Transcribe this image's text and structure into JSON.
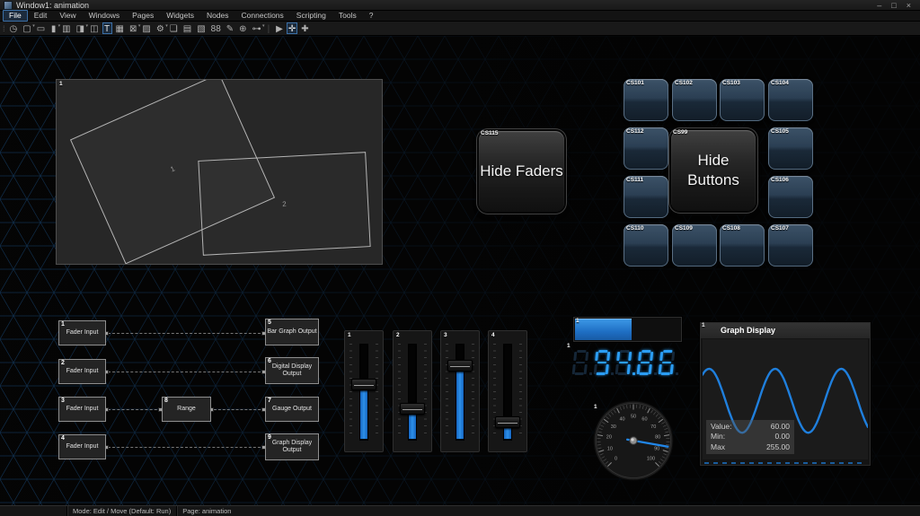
{
  "titlebar": {
    "title": "Window1: animation",
    "controls": {
      "minimize": "–",
      "maximize": "□",
      "close": "×"
    }
  },
  "menubar": {
    "items": [
      "File",
      "Edit",
      "View",
      "Windows",
      "Pages",
      "Widgets",
      "Nodes",
      "Connections",
      "Scripting",
      "Tools",
      "?"
    ],
    "active": "File"
  },
  "toolbar": {
    "buttons": [
      {
        "name": "clock-tool",
        "glyph": "◷"
      },
      {
        "name": "button-widget",
        "glyph": "▢",
        "dropdown": true
      },
      {
        "name": "label-widget",
        "glyph": "▭"
      },
      {
        "name": "fader-widget",
        "glyph": "▮",
        "dropdown": true
      },
      {
        "name": "fader-bank-widget",
        "glyph": "▥"
      },
      {
        "name": "display-widget",
        "glyph": "◨",
        "dropdown": true
      },
      {
        "name": "panel-widget",
        "glyph": "◫"
      },
      {
        "name": "text-widget",
        "glyph": "T",
        "active": true
      },
      {
        "name": "grid-widget",
        "glyph": "▦"
      },
      {
        "name": "picker-tool",
        "glyph": "⊠",
        "dropdown": true
      },
      {
        "name": "image-widget",
        "glyph": "▨"
      },
      {
        "name": "gear-tool",
        "glyph": "⚙",
        "dropdown": true
      },
      {
        "name": "new-page-tool",
        "glyph": "❏"
      },
      {
        "name": "table-widget",
        "glyph": "▤"
      },
      {
        "name": "notes-widget",
        "glyph": "▧"
      },
      {
        "name": "digital-display-widget",
        "glyph": "88"
      },
      {
        "name": "script-tool",
        "glyph": "✎"
      },
      {
        "name": "web-widget",
        "glyph": "⊕"
      },
      {
        "name": "nodes-tool",
        "glyph": "⊶",
        "dropdown": true
      },
      {
        "name": "separator",
        "glyph": "|",
        "separator": true
      },
      {
        "name": "run-mode-tool",
        "glyph": "▶"
      },
      {
        "name": "move-tool",
        "glyph": "✛",
        "active": true
      },
      {
        "name": "crosshair-tool",
        "glyph": "✚"
      }
    ]
  },
  "canvas": {
    "display_panel": {
      "tag": "1",
      "rect1_label": "1",
      "rect2_label": "2"
    },
    "hide_faders": {
      "tag": "CS115",
      "label": "Hide Faders"
    },
    "hide_buttons": {
      "tag": "CS99",
      "label": "Hide Buttons"
    },
    "cs_buttons": [
      "CS101",
      "CS102",
      "CS103",
      "CS104",
      "CS112",
      "CS105",
      "CS111",
      "CS106",
      "CS110",
      "CS109",
      "CS108",
      "CS107"
    ],
    "node_graph": {
      "inputs": [
        {
          "num": "1",
          "label": "Fader Input"
        },
        {
          "num": "2",
          "label": "Fader Input"
        },
        {
          "num": "3",
          "label": "Fader Input"
        },
        {
          "num": "4",
          "label": "Fader Input"
        }
      ],
      "range": {
        "num": "8",
        "label": "Range"
      },
      "outputs": [
        {
          "num": "5",
          "label": "Bar Graph Output"
        },
        {
          "num": "6",
          "label": "Digital Display Output"
        },
        {
          "num": "7",
          "label": "Gauge Output"
        },
        {
          "num": "9",
          "label": "Graph Display Output"
        }
      ]
    },
    "faders": [
      {
        "num": "1",
        "value": 0.57
      },
      {
        "num": "2",
        "value": 0.32
      },
      {
        "num": "3",
        "value": 0.77
      },
      {
        "num": "4",
        "value": 0.17
      }
    ],
    "bar_graph": {
      "num": "1",
      "value": 0.55
    },
    "digital_display": {
      "num": "1",
      "value": "94.86",
      "digits": [
        {
          "v": "8",
          "ghost": true,
          "dp": false
        },
        {
          "v": "9",
          "dp": false
        },
        {
          "v": "4",
          "dp": true
        },
        {
          "v": "8",
          "dp": false
        },
        {
          "v": "6",
          "dp": false
        }
      ]
    },
    "gauge": {
      "num": "1",
      "value": 87,
      "min": 0,
      "max": 100,
      "tick_labels": [
        "0",
        "10",
        "20",
        "30",
        "40",
        "50",
        "60",
        "70",
        "80",
        "90",
        "100"
      ]
    },
    "graph_display": {
      "num": "1",
      "title": "Graph Display",
      "wave": {
        "mid": 0.52,
        "amplitude": 0.27,
        "period": 0.4,
        "phase": 0.061
      },
      "overlay": [
        {
          "label": "Value:",
          "value": "60.00"
        },
        {
          "label": "Min:",
          "value": "0.00"
        },
        {
          "label": "Max",
          "value": "255.00"
        }
      ]
    }
  },
  "statusbar": {
    "mode": "Mode: Edit / Move (Default: Run)",
    "page": "Page: animation"
  },
  "colors": {
    "accent_blue": "#1e88e5",
    "segment_on": "#2b9df4",
    "grid_line": "#1d5fa0",
    "button_face": "#2b3f53",
    "needle": "#2186e8"
  }
}
